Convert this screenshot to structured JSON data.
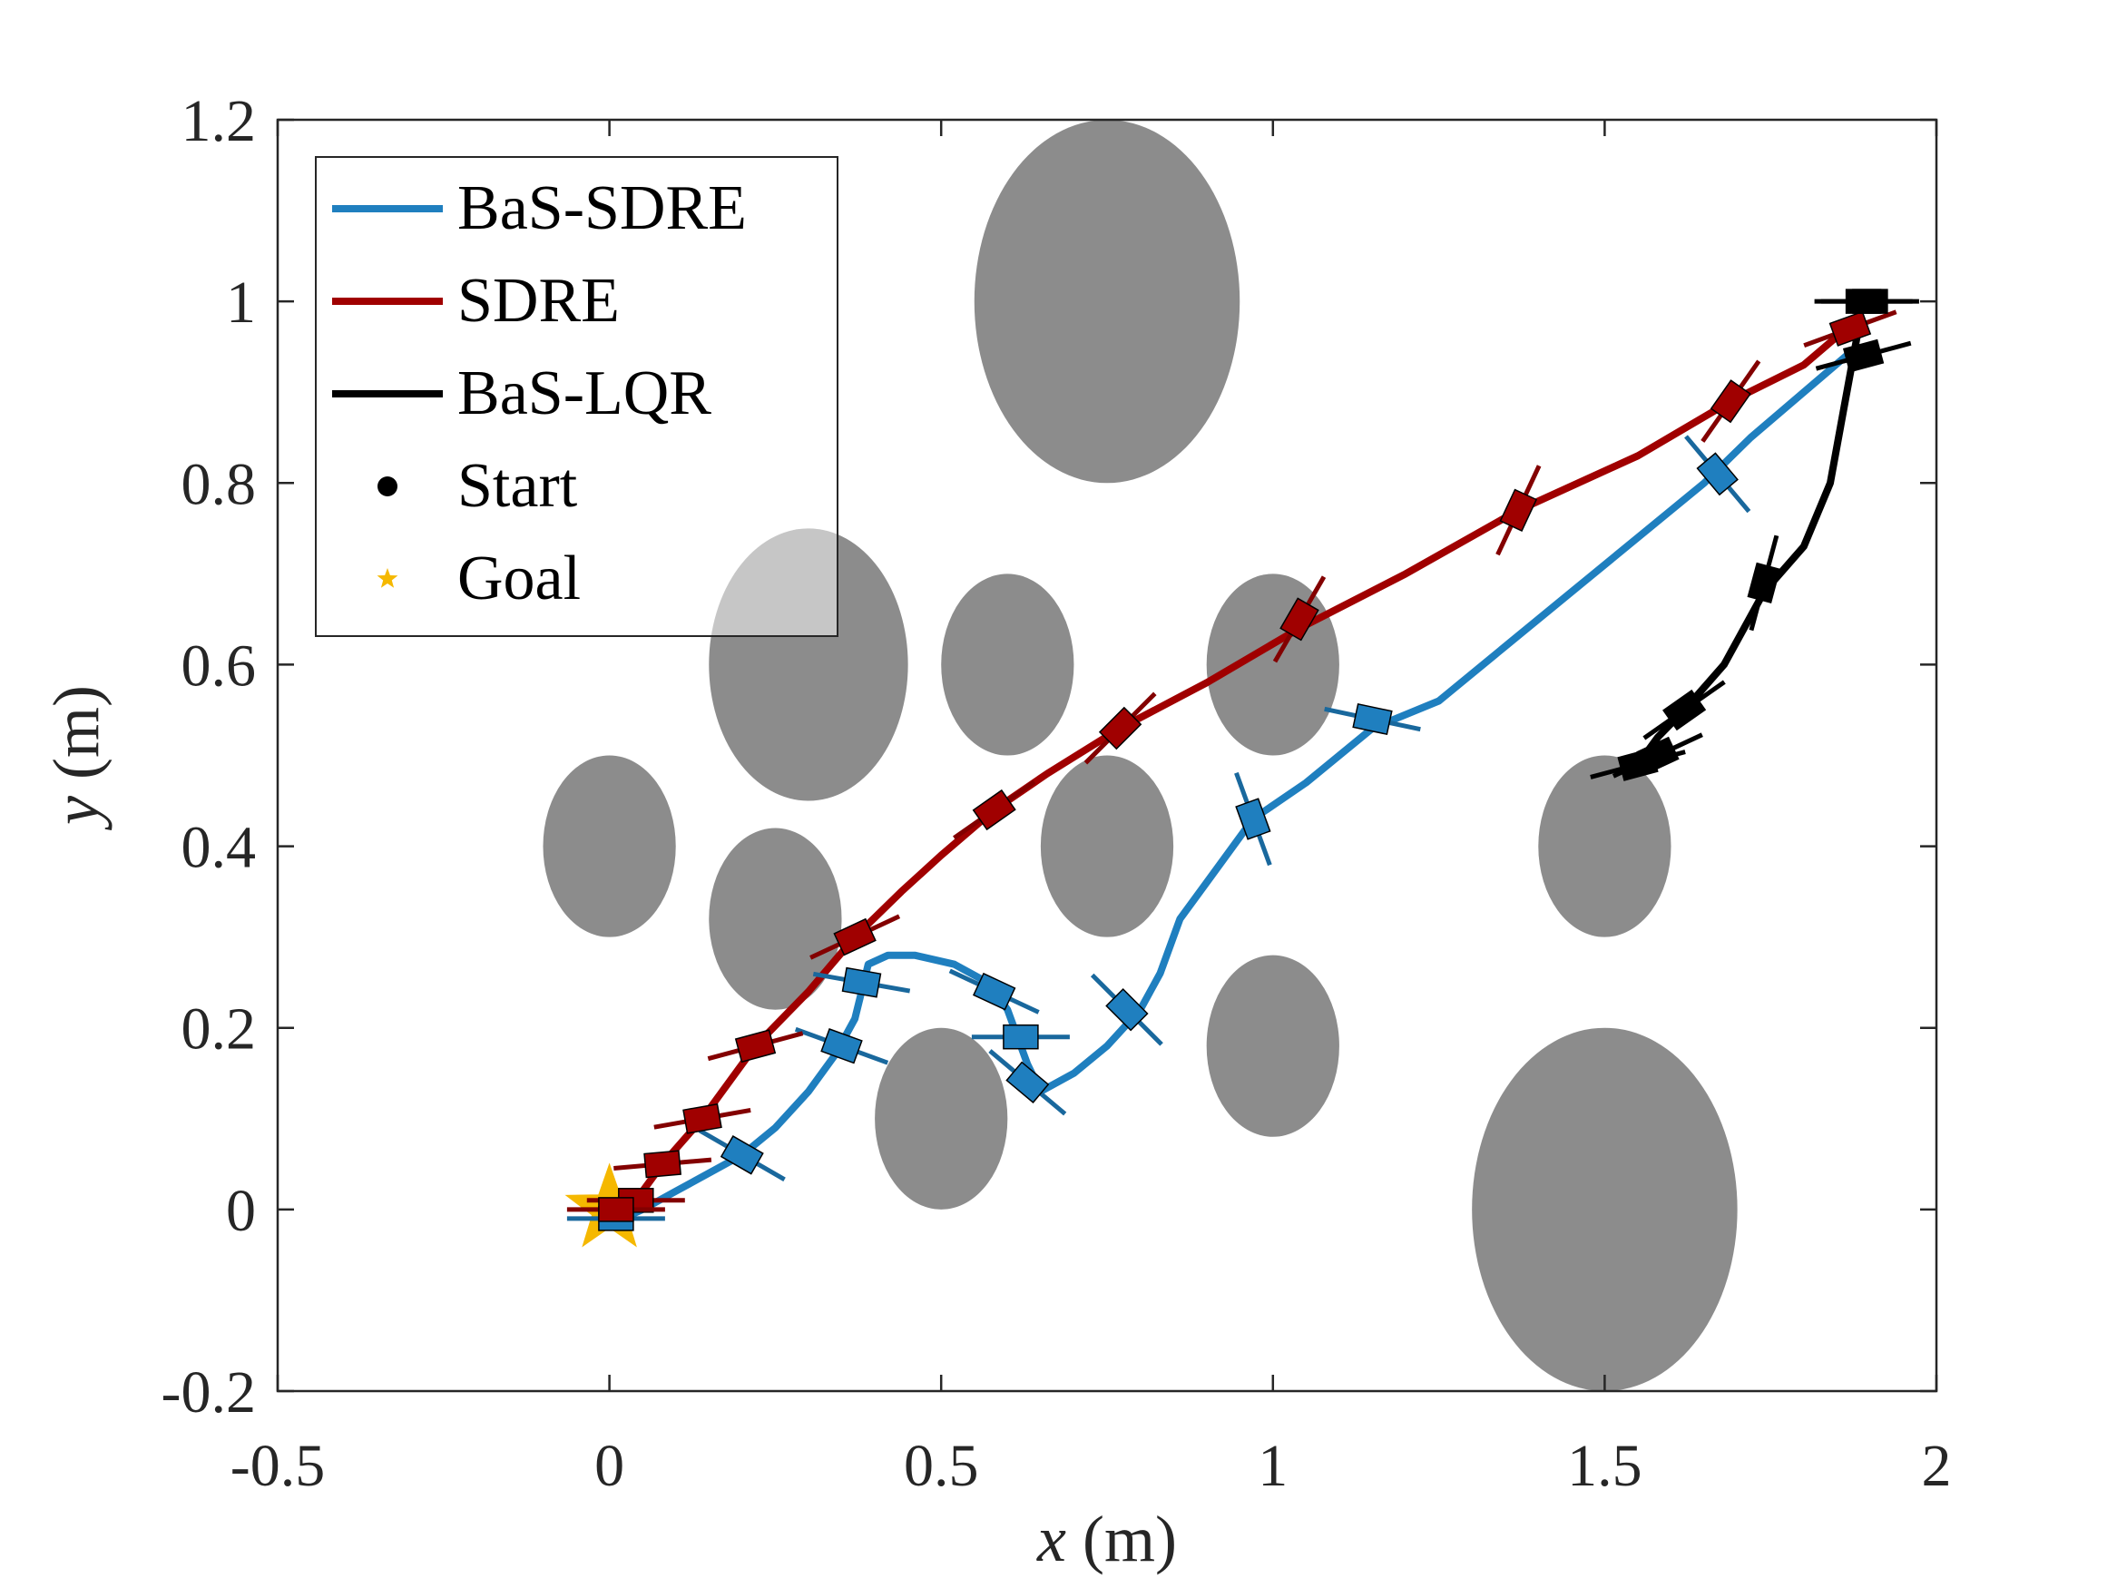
{
  "chart_data": {
    "type": "line",
    "title": "",
    "xlabel": {
      "var": "x",
      "unit": " (m)"
    },
    "ylabel": {
      "var": "y",
      "unit": " (m)"
    },
    "xlim": [
      -0.5,
      2
    ],
    "ylim": [
      -0.2,
      1.2
    ],
    "xticks": [
      -0.5,
      0,
      0.5,
      1,
      1.5,
      2
    ],
    "xtick_labels": [
      "-0.5",
      "0",
      "0.5",
      "1",
      "1.5",
      "2"
    ],
    "yticks": [
      -0.2,
      0,
      0.2,
      0.4,
      0.6,
      0.8,
      1,
      1.2
    ],
    "ytick_labels": [
      "-0.2",
      "0",
      "0.2",
      "0.4",
      "0.6",
      "0.8",
      "1",
      "1.2"
    ],
    "grid": false,
    "obstacles": [
      {
        "cx": 0.75,
        "cy": 1.0,
        "rx": 0.2,
        "ry": 0.2
      },
      {
        "cx": 0.3,
        "cy": 0.6,
        "rx": 0.15,
        "ry": 0.15
      },
      {
        "cx": 0.6,
        "cy": 0.6,
        "rx": 0.1,
        "ry": 0.1
      },
      {
        "cx": 1.0,
        "cy": 0.6,
        "rx": 0.1,
        "ry": 0.1
      },
      {
        "cx": 0.0,
        "cy": 0.4,
        "rx": 0.1,
        "ry": 0.1
      },
      {
        "cx": 0.25,
        "cy": 0.32,
        "rx": 0.1,
        "ry": 0.1
      },
      {
        "cx": 0.75,
        "cy": 0.4,
        "rx": 0.1,
        "ry": 0.1
      },
      {
        "cx": 1.5,
        "cy": 0.4,
        "rx": 0.1,
        "ry": 0.1
      },
      {
        "cx": 0.5,
        "cy": 0.1,
        "rx": 0.1,
        "ry": 0.1
      },
      {
        "cx": 1.0,
        "cy": 0.18,
        "rx": 0.1,
        "ry": 0.1
      },
      {
        "cx": 1.5,
        "cy": 0.0,
        "rx": 0.2,
        "ry": 0.2
      }
    ],
    "obstacle_color": "#808080",
    "series": [
      {
        "name": "BaS-SDRE",
        "color": "#1f7fbf",
        "x": [
          1.88,
          1.8,
          1.72,
          1.65,
          1.55,
          1.45,
          1.35,
          1.25,
          1.15,
          1.05,
          0.97,
          0.9,
          0.86,
          0.83,
          0.8,
          0.75,
          0.7,
          0.65,
          0.63,
          0.6,
          0.57,
          0.52,
          0.46,
          0.42,
          0.39,
          0.38,
          0.37,
          0.34,
          0.3,
          0.25,
          0.2,
          0.15,
          0.1,
          0.05,
          0.02,
          0.0
        ],
        "y": [
          0.95,
          0.9,
          0.85,
          0.8,
          0.74,
          0.68,
          0.62,
          0.56,
          0.53,
          0.47,
          0.43,
          0.36,
          0.32,
          0.26,
          0.22,
          0.18,
          0.15,
          0.13,
          0.16,
          0.22,
          0.25,
          0.27,
          0.28,
          0.28,
          0.27,
          0.24,
          0.21,
          0.17,
          0.13,
          0.09,
          0.06,
          0.04,
          0.02,
          0.0,
          -0.01,
          0.0
        ],
        "robots": [
          [
            1.67,
            0.81,
            50
          ],
          [
            1.15,
            0.54,
            12
          ],
          [
            0.97,
            0.43,
            70
          ],
          [
            0.78,
            0.22,
            45
          ],
          [
            0.63,
            0.14,
            40
          ],
          [
            0.62,
            0.19,
            0
          ],
          [
            0.58,
            0.24,
            25
          ],
          [
            0.38,
            0.25,
            10
          ],
          [
            0.35,
            0.18,
            20
          ],
          [
            0.2,
            0.06,
            30
          ],
          [
            0.01,
            -0.01,
            0
          ]
        ]
      },
      {
        "name": "SDRE",
        "color": "#a00000",
        "x": [
          1.88,
          1.8,
          1.69,
          1.55,
          1.37,
          1.2,
          1.04,
          0.9,
          0.77,
          0.66,
          0.58,
          0.5,
          0.44,
          0.37,
          0.3,
          0.22,
          0.14,
          0.08,
          0.04,
          0.01,
          0.0
        ],
        "y": [
          0.98,
          0.93,
          0.89,
          0.83,
          0.77,
          0.7,
          0.64,
          0.58,
          0.53,
          0.48,
          0.44,
          0.39,
          0.35,
          0.3,
          0.24,
          0.18,
          0.1,
          0.05,
          0.01,
          0.0,
          0.0
        ],
        "robots": [
          [
            1.87,
            0.97,
            -20
          ],
          [
            1.69,
            0.89,
            -55
          ],
          [
            1.37,
            0.77,
            -65
          ],
          [
            1.04,
            0.65,
            -60
          ],
          [
            0.77,
            0.53,
            -45
          ],
          [
            0.58,
            0.44,
            -35
          ],
          [
            0.37,
            0.3,
            -25
          ],
          [
            0.22,
            0.18,
            -15
          ],
          [
            0.14,
            0.1,
            -10
          ],
          [
            0.08,
            0.05,
            -5
          ],
          [
            0.04,
            0.01,
            0
          ],
          [
            0.01,
            0.0,
            0
          ]
        ]
      },
      {
        "name": "BaS-LQR",
        "color": "#000000",
        "x": [
          1.88,
          1.86,
          1.84,
          1.8,
          1.74,
          1.68,
          1.62,
          1.58,
          1.56,
          1.54
        ],
        "y": [
          0.96,
          0.88,
          0.8,
          0.73,
          0.68,
          0.6,
          0.55,
          0.52,
          0.5,
          0.49
        ],
        "robots": [
          [
            1.89,
            1.0,
            0
          ],
          [
            1.9,
            1.0,
            0
          ],
          [
            1.89,
            0.94,
            -15
          ],
          [
            1.74,
            0.69,
            -75
          ],
          [
            1.62,
            0.55,
            -35
          ],
          [
            1.58,
            0.5,
            -25
          ],
          [
            1.55,
            0.49,
            -15
          ]
        ]
      }
    ],
    "start": {
      "name": "Start",
      "color": "#000000",
      "points": [
        [
          1.9,
          1.0
        ],
        [
          1.88,
          0.97
        ]
      ]
    },
    "goal": {
      "name": "Goal",
      "color": "#f5b800",
      "point": [
        0.0,
        0.0
      ]
    },
    "legend": {
      "location": "top-left",
      "entries": [
        "BaS-SDRE",
        "SDRE",
        "BaS-LQR",
        "Start",
        "Goal"
      ]
    }
  }
}
